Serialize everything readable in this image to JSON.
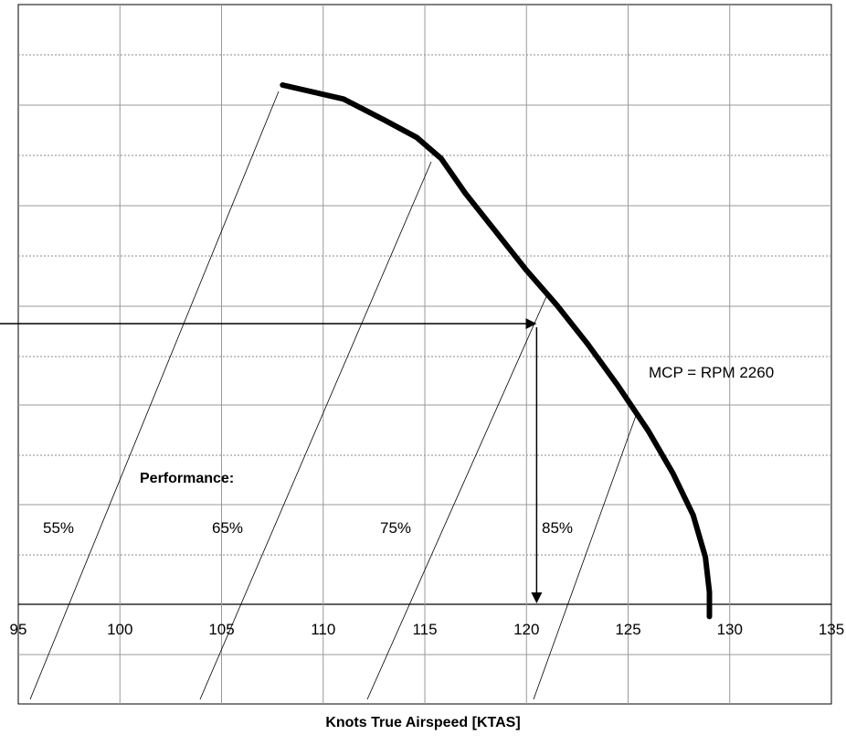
{
  "chart_data": {
    "type": "line",
    "xlabel": "Knots True Airspeed [KTAS]",
    "x_ticks": [
      95,
      100,
      105,
      110,
      115,
      120,
      125,
      130,
      135
    ],
    "xlim": [
      95,
      135
    ],
    "grid": true,
    "series": [
      {
        "name": "MCP = RPM 2260",
        "x": [
          108,
          111,
          113,
          114.6,
          115.8,
          117,
          118.5,
          120,
          121.5,
          123,
          124.5,
          126,
          127.2,
          128.2,
          128.8,
          129.0,
          129.0
        ],
        "y_grid_fraction": [
          0.115,
          0.135,
          0.165,
          0.19,
          0.22,
          0.27,
          0.325,
          0.38,
          0.43,
          0.485,
          0.545,
          0.61,
          0.67,
          0.73,
          0.79,
          0.84,
          0.875
        ]
      }
    ],
    "performance_lines": [
      {
        "label": "55%"
      },
      {
        "label": "65%"
      },
      {
        "label": "75%"
      },
      {
        "label": "85%"
      }
    ],
    "annotations": {
      "mcp_label": "MCP = RPM 2260",
      "performance_label": "Performance:",
      "example_read_value": 120.5
    }
  }
}
